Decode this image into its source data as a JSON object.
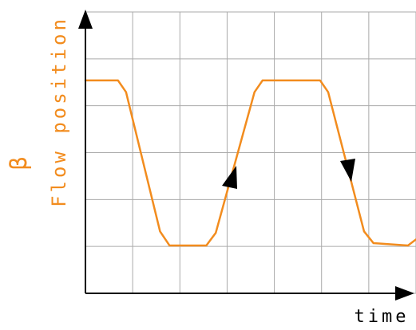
{
  "chart_data": {
    "type": "line",
    "symbol": "β",
    "ylabel": "Flow position",
    "xlabel": "time",
    "x": [
      0,
      0.69,
      0.86,
      1.58,
      1.78,
      2.56,
      2.76,
      3.58,
      3.75,
      4.97,
      5.14,
      5.9,
      6.1,
      6.83,
      7
    ],
    "values": [
      4.54,
      4.54,
      4.29,
      1.32,
      1.02,
      1.02,
      1.29,
      4.29,
      4.54,
      4.54,
      4.29,
      1.32,
      1.07,
      1.02,
      1.15
    ],
    "color": "#f28c1e",
    "xlim": [
      0,
      7
    ],
    "ylim": [
      0,
      6
    ],
    "xticks": [
      0,
      1,
      2,
      3,
      4,
      5,
      6,
      7
    ],
    "yticks": [
      0,
      1,
      2,
      3,
      4,
      5,
      6
    ],
    "grid": true
  }
}
